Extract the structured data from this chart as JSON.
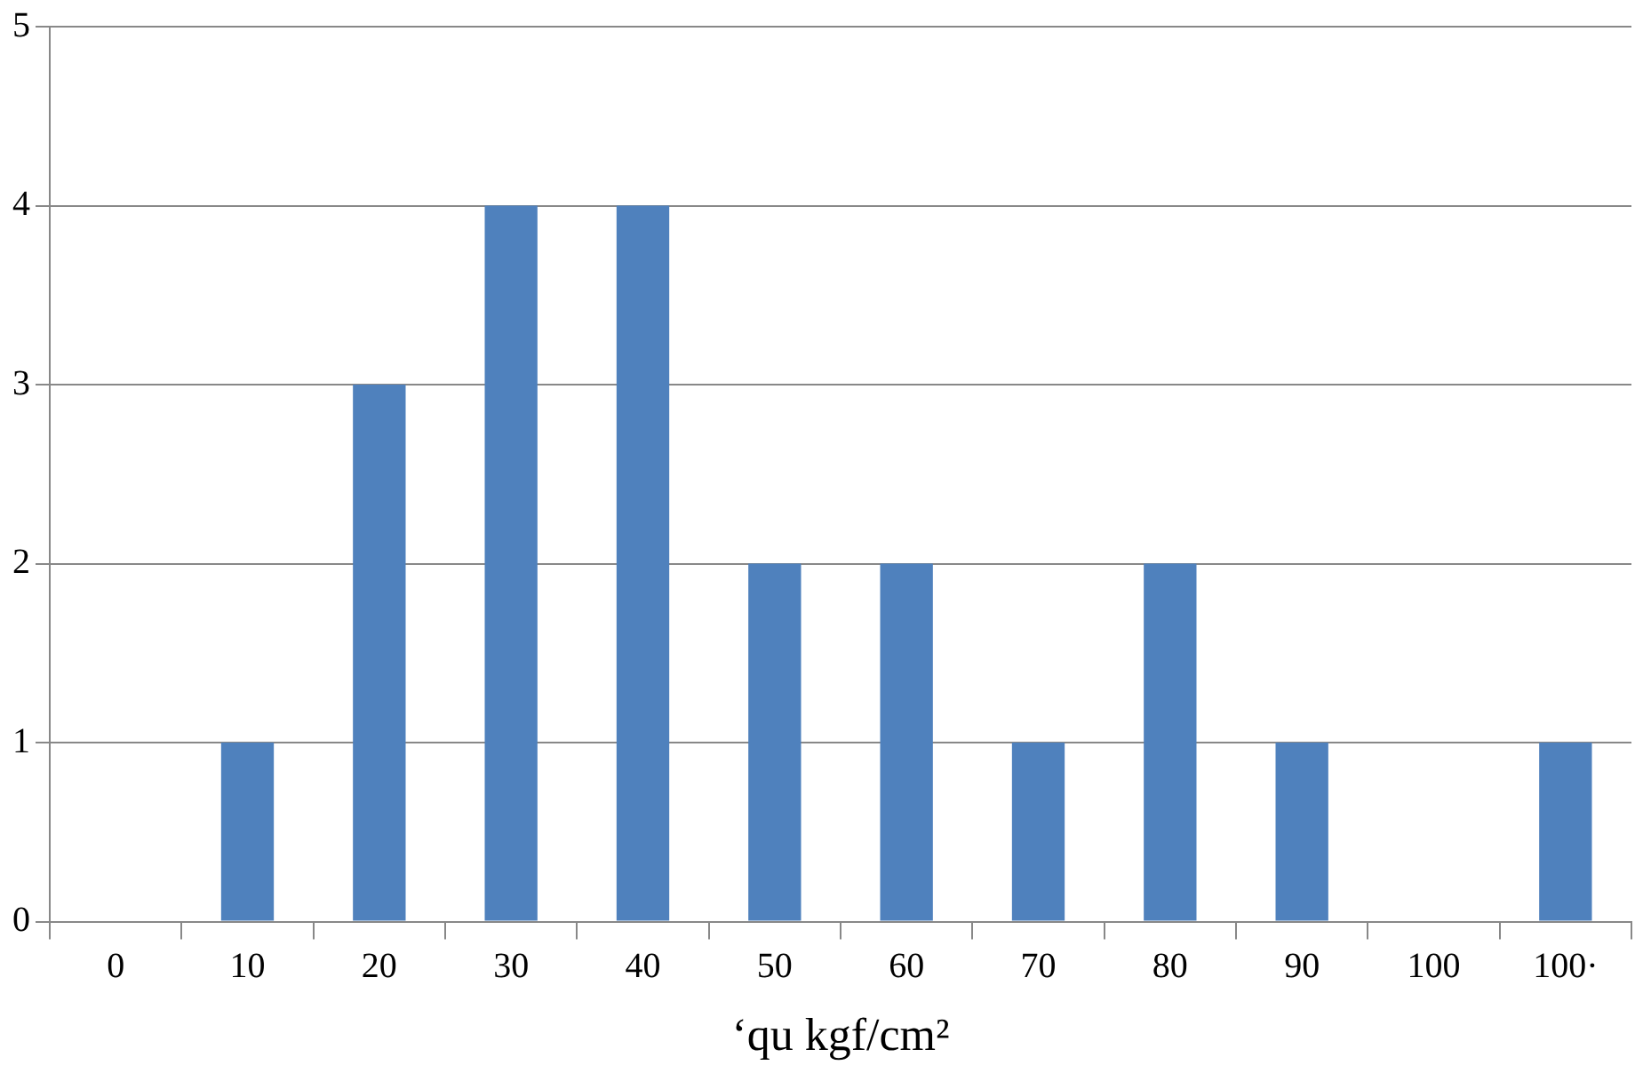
{
  "chart_data": {
    "type": "bar",
    "xlabel": "‘qu kgf/cm²",
    "categories": [
      "0",
      "10",
      "20",
      "30",
      "40",
      "50",
      "60",
      "70",
      "80",
      "90",
      "100",
      "100·"
    ],
    "values": [
      0,
      1,
      3,
      4,
      4,
      2,
      2,
      1,
      2,
      1,
      0,
      1
    ],
    "color": "#4f81bd",
    "ylim": [
      0,
      5
    ],
    "yticks": [
      0,
      1,
      2,
      3,
      4,
      5
    ],
    "grid": "y"
  }
}
